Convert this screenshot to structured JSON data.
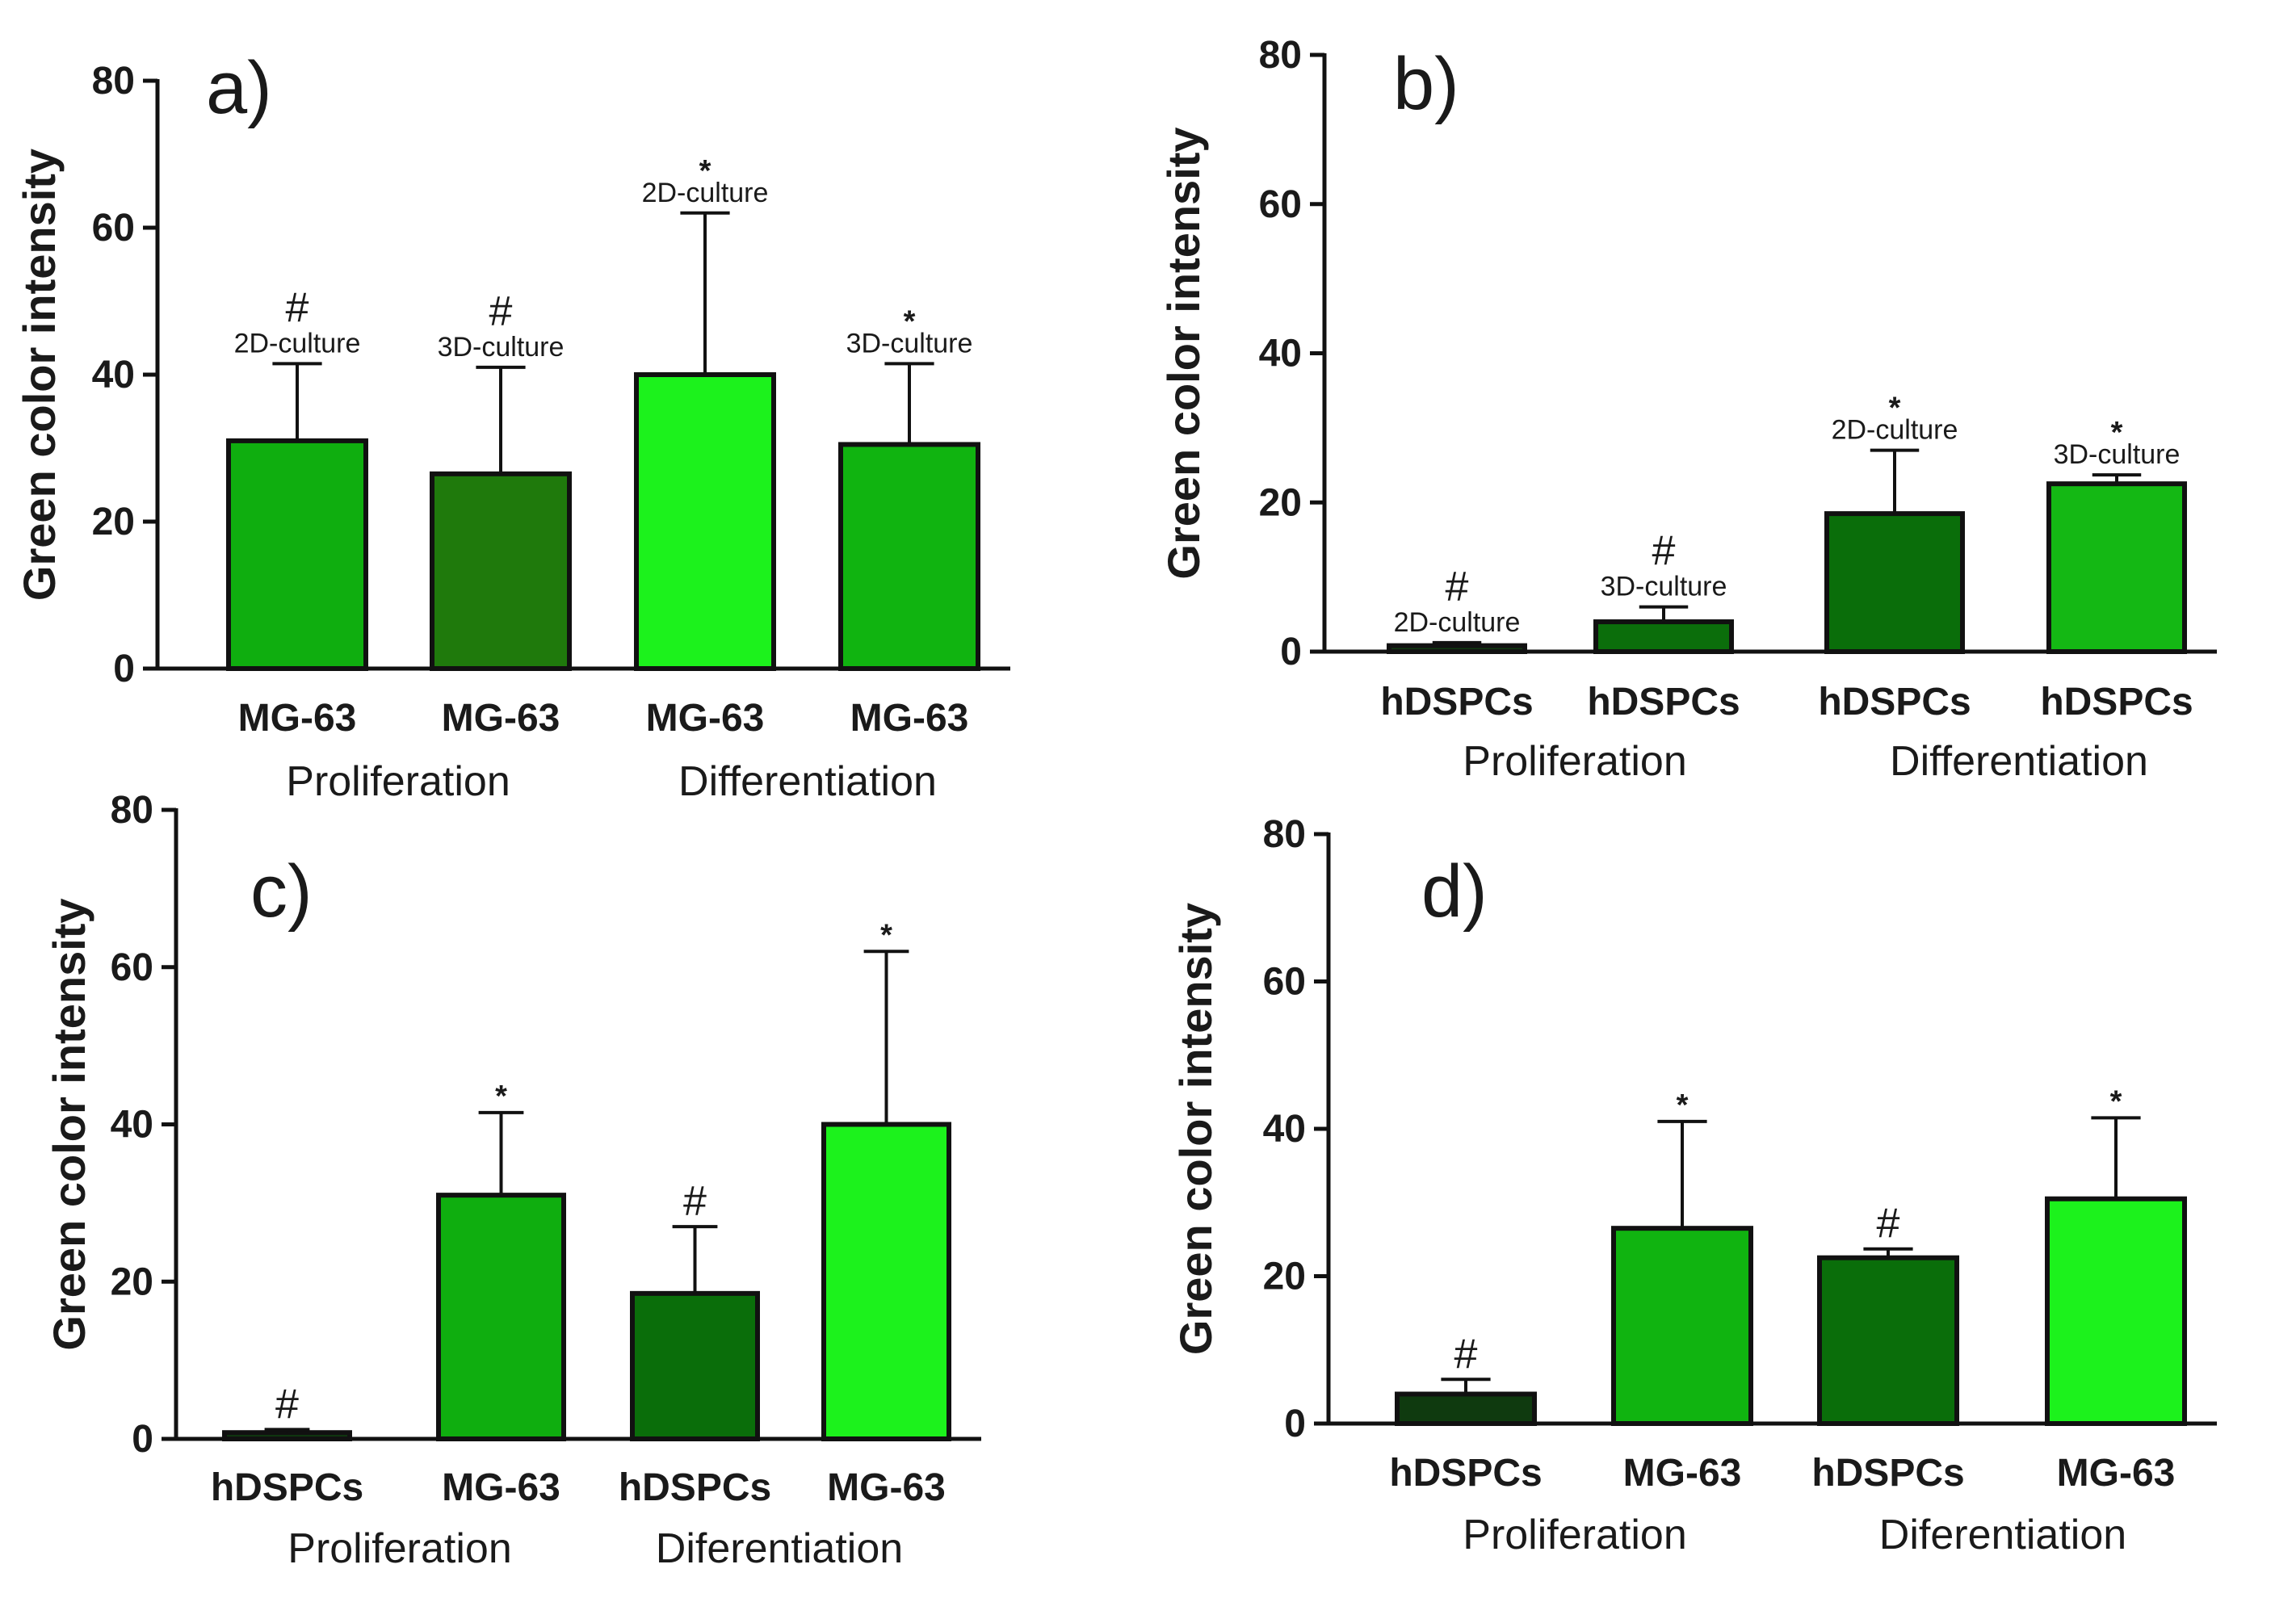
{
  "chart_data": [
    {
      "type": "bar",
      "panel": "a)",
      "ylabel": "Green color intensity",
      "ylim": [
        0,
        80
      ],
      "yticks": [
        0,
        20,
        40,
        60,
        80
      ],
      "categories": [
        "MG-63",
        "MG-63",
        "MG-63",
        "MG-63"
      ],
      "values": [
        31,
        26.5,
        40,
        30.5
      ],
      "errors": [
        10.5,
        14.5,
        22,
        11
      ],
      "colors": [
        "#0fae0f",
        "#1f7a0c",
        "#1cf21c",
        "#10b410"
      ],
      "annotations": [
        {
          "culture": "2D-culture",
          "mark": "#"
        },
        {
          "culture": "3D-culture",
          "mark": "#"
        },
        {
          "culture": "2D-culture",
          "mark": "*"
        },
        {
          "culture": "3D-culture",
          "mark": "*"
        }
      ],
      "groups": [
        {
          "label": "Proliferation",
          "span": [
            0,
            1
          ]
        },
        {
          "label": "Differentiation",
          "span": [
            2,
            3
          ]
        }
      ]
    },
    {
      "type": "bar",
      "panel": "b)",
      "ylabel": "Green color intensity",
      "ylim": [
        0,
        80
      ],
      "yticks": [
        0,
        20,
        40,
        60,
        80
      ],
      "categories": [
        "hDSPCs",
        "hDSPCs",
        "hDSPCs",
        "hDSPCs"
      ],
      "values": [
        0.8,
        4,
        18.5,
        22.5
      ],
      "errors": [
        0.4,
        2,
        8.5,
        1.2
      ],
      "colors": [
        "#0f3a0f",
        "#0b6e0b",
        "#0a6e0a",
        "#14b814"
      ],
      "annotations": [
        {
          "culture": "2D-culture",
          "mark": "#"
        },
        {
          "culture": "3D-culture",
          "mark": "#"
        },
        {
          "culture": "2D-culture",
          "mark": "*"
        },
        {
          "culture": "3D-culture",
          "mark": "*"
        }
      ],
      "groups": [
        {
          "label": "Proliferation",
          "span": [
            0,
            1
          ]
        },
        {
          "label": "Differentiation",
          "span": [
            2,
            3
          ]
        }
      ]
    },
    {
      "type": "bar",
      "panel": "c)",
      "ylabel": "Green color intensity",
      "ylim": [
        0,
        80
      ],
      "yticks": [
        0,
        20,
        40,
        60,
        80
      ],
      "categories": [
        "hDSPCs",
        "MG-63",
        "hDSPCs",
        "MG-63"
      ],
      "values": [
        0.8,
        31,
        18.5,
        40
      ],
      "errors": [
        0.4,
        10.5,
        8.5,
        22
      ],
      "colors": [
        "#0f3a0f",
        "#0fae0f",
        "#0a6e0a",
        "#1cf21c"
      ],
      "annotations": [
        {
          "culture": "",
          "mark": "#"
        },
        {
          "culture": "",
          "mark": "*"
        },
        {
          "culture": "",
          "mark": "#"
        },
        {
          "culture": "",
          "mark": "*"
        }
      ],
      "groups": [
        {
          "label": "Proliferation",
          "span": [
            0,
            1
          ]
        },
        {
          "label": "Diferentiation",
          "span": [
            2,
            3
          ]
        }
      ]
    },
    {
      "type": "bar",
      "panel": "d)",
      "ylabel": "Green color intensity",
      "ylim": [
        0,
        80
      ],
      "yticks": [
        0,
        20,
        40,
        60,
        80
      ],
      "categories": [
        "hDSPCs",
        "MG-63",
        "hDSPCs",
        "MG-63"
      ],
      "values": [
        4,
        26.5,
        22.5,
        30.5
      ],
      "errors": [
        2,
        14.5,
        1.2,
        11
      ],
      "colors": [
        "#0f3a0f",
        "#10b410",
        "#0a6e0a",
        "#1cf21c"
      ],
      "annotations": [
        {
          "culture": "",
          "mark": "#"
        },
        {
          "culture": "",
          "mark": "*"
        },
        {
          "culture": "",
          "mark": "#"
        },
        {
          "culture": "",
          "mark": "*"
        }
      ],
      "groups": [
        {
          "label": "Proliferation",
          "span": [
            0,
            1
          ]
        },
        {
          "label": "Diferentiation",
          "span": [
            2,
            3
          ]
        }
      ]
    }
  ]
}
